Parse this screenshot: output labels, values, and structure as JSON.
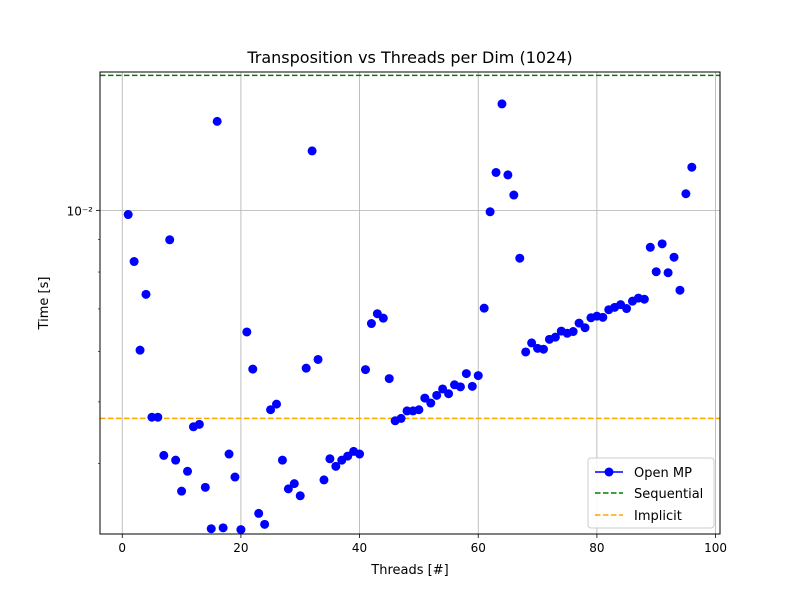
{
  "chart_data": {
    "type": "scatter",
    "title": "Transposition vs Threads per Dim (1024)",
    "xlabel": "Threads [#]",
    "ylabel": "Time [s]",
    "xlim": [
      -3.75,
      100.75
    ],
    "ylim": [
      0.0031,
      0.0165
    ],
    "yscale": "log",
    "grid": true,
    "x_ticks": [
      0,
      20,
      40,
      60,
      80,
      100
    ],
    "x_tick_labels": [
      "0",
      "20",
      "40",
      "60",
      "80",
      "100"
    ],
    "y_major_ticks": [
      0.01
    ],
    "y_tick_labels": [
      "10⁻²"
    ],
    "legend_position": "lower-right",
    "colors": {
      "openmp": "#0000ff",
      "sequential": "#008000",
      "implicit": "#ffa500"
    },
    "series": [
      {
        "name": "Open MP",
        "style": "markers",
        "x": [
          1,
          2,
          3,
          4,
          5,
          6,
          7,
          8,
          9,
          10,
          11,
          12,
          13,
          14,
          15,
          16,
          17,
          18,
          19,
          20,
          21,
          22,
          23,
          24,
          25,
          26,
          27,
          28,
          29,
          30,
          31,
          32,
          33,
          34,
          35,
          36,
          37,
          38,
          39,
          40,
          41,
          42,
          43,
          44,
          45,
          46,
          47,
          48,
          49,
          50,
          51,
          52,
          53,
          54,
          55,
          56,
          57,
          58,
          59,
          60,
          61,
          62,
          63,
          64,
          65,
          66,
          67,
          68,
          69,
          70,
          71,
          72,
          73,
          74,
          75,
          76,
          77,
          78,
          79,
          80,
          81,
          82,
          83,
          84,
          85,
          86,
          87,
          88,
          89,
          90,
          91,
          92,
          93,
          94,
          95,
          96
        ],
        "y": [
          0.00985,
          0.00831,
          0.00603,
          0.00738,
          0.00473,
          0.00473,
          0.00412,
          0.00899,
          0.00405,
          0.00362,
          0.00389,
          0.00457,
          0.00461,
          0.00367,
          0.00316,
          0.0138,
          0.00317,
          0.00414,
          0.00381,
          0.00315,
          0.00644,
          0.00563,
          0.00334,
          0.00321,
          0.00486,
          0.00496,
          0.00405,
          0.00365,
          0.00372,
          0.00356,
          0.00565,
          0.0124,
          0.00583,
          0.00377,
          0.00407,
          0.00396,
          0.00405,
          0.00411,
          0.00418,
          0.00414,
          0.00562,
          0.00664,
          0.00688,
          0.00677,
          0.00544,
          0.00467,
          0.00471,
          0.00484,
          0.00484,
          0.00486,
          0.00507,
          0.00498,
          0.00512,
          0.00524,
          0.00515,
          0.00532,
          0.00528,
          0.00554,
          0.00529,
          0.0055,
          0.00702,
          0.00995,
          0.01147,
          0.0147,
          0.01137,
          0.01057,
          0.00841,
          0.00599,
          0.00619,
          0.00607,
          0.00605,
          0.00627,
          0.00632,
          0.00646,
          0.00641,
          0.00645,
          0.00665,
          0.00654,
          0.00678,
          0.00682,
          0.00679,
          0.00698,
          0.00704,
          0.00711,
          0.00701,
          0.0072,
          0.00728,
          0.00725,
          0.00875,
          0.00801,
          0.00886,
          0.00798,
          0.00844,
          0.00749,
          0.01062,
          0.01169
        ]
      },
      {
        "name": "Sequential",
        "style": "dashed-line",
        "y": 0.0163
      },
      {
        "name": "Implicit",
        "style": "dashed-line",
        "y": 0.00471
      }
    ]
  }
}
